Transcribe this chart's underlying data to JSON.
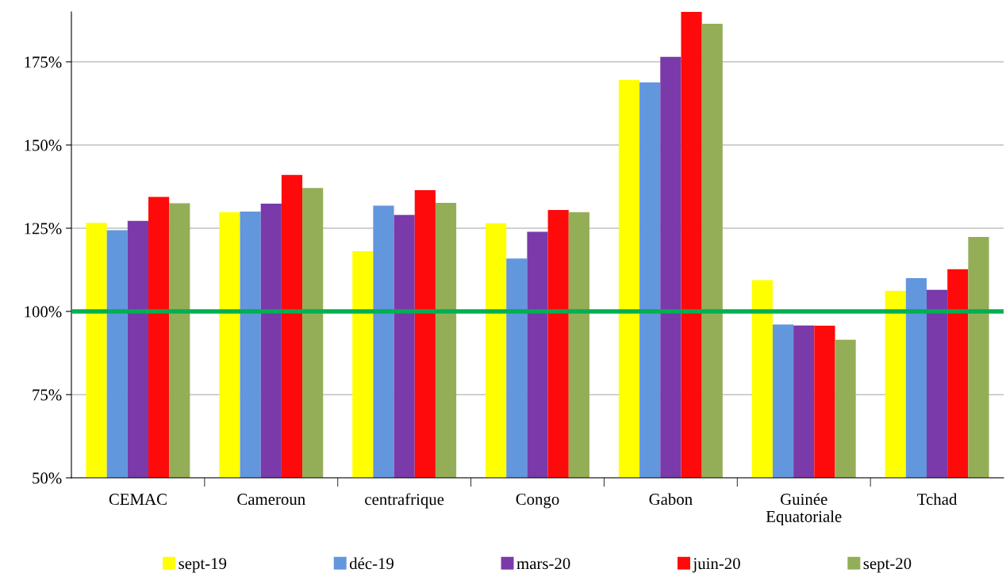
{
  "chart_data": {
    "type": "bar",
    "categories": [
      "CEMAC",
      "Cameroun",
      "centrafrique",
      "Congo",
      "Gabon",
      "Guinée\nEquatoriale",
      "Tchad"
    ],
    "series": [
      {
        "name": "sept-19",
        "color": "#ffff00",
        "values": [
          126.6,
          129.8,
          118.1,
          126.5,
          169.5,
          109.4,
          106.2
        ]
      },
      {
        "name": "déc-19",
        "color": "#6297dd",
        "values": [
          124.4,
          130.0,
          131.8,
          115.9,
          168.8,
          96.1,
          110.0
        ]
      },
      {
        "name": "mars-20",
        "color": "#7a3aaa",
        "values": [
          127.2,
          132.4,
          129.0,
          123.9,
          176.5,
          95.8,
          106.5
        ]
      },
      {
        "name": "juin-20",
        "color": "#ff0a0a",
        "values": [
          134.4,
          141.0,
          136.4,
          130.5,
          190.0,
          95.7,
          112.7
        ]
      },
      {
        "name": "sept-20",
        "color": "#94ae57",
        "values": [
          132.5,
          137.1,
          132.6,
          129.8,
          186.4,
          91.5,
          122.4
        ]
      }
    ],
    "ylim": [
      50,
      190
    ],
    "yticks": [
      {
        "value": 50,
        "label": "50%"
      },
      {
        "value": 75,
        "label": "75%"
      },
      {
        "value": 100,
        "label": "100%"
      },
      {
        "value": 125,
        "label": "125%"
      },
      {
        "value": 150,
        "label": "150%"
      },
      {
        "value": 175,
        "label": "175%"
      }
    ],
    "ref_lines": [
      {
        "axis": "y",
        "value": 100,
        "color": "#00b050"
      }
    ],
    "grid": "y",
    "legend": "bottom"
  }
}
